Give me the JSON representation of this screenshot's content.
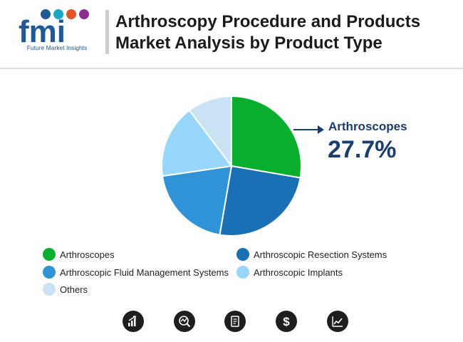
{
  "header": {
    "logo_text": "fmi",
    "logo_caption": "Future Market Insights",
    "title": "Arthroscopy Procedure and Products Market Analysis by Product Type"
  },
  "colors": {
    "title": "#1b1b1b",
    "callout": "#1a3d70"
  },
  "chart_data": {
    "type": "pie",
    "title": "Arthroscopy Procedure and Products Market Analysis by Product Type",
    "slices": [
      {
        "label": "Arthroscopes",
        "value": 27.7,
        "color": "#0aae2f"
      },
      {
        "label": "Arthroscopic Resection Systems",
        "value": 25.0,
        "color": "#1a70b5"
      },
      {
        "label": "Arthroscopic Fluid Management Systems",
        "value": 20.0,
        "color": "#2f93d8"
      },
      {
        "label": "Arthroscopic Implants",
        "value": 17.0,
        "color": "#99d6fb"
      },
      {
        "label": "Others",
        "value": 10.3,
        "color": "#c9e3f4"
      }
    ],
    "highlight": {
      "label": "Arthroscopes",
      "value_text": "27.7%"
    },
    "legend_position": "bottom"
  },
  "footer": {
    "icons": [
      "bar-chart-growth-icon",
      "analytics-icon",
      "report-document-icon",
      "dollar-icon",
      "trend-chart-icon"
    ]
  }
}
